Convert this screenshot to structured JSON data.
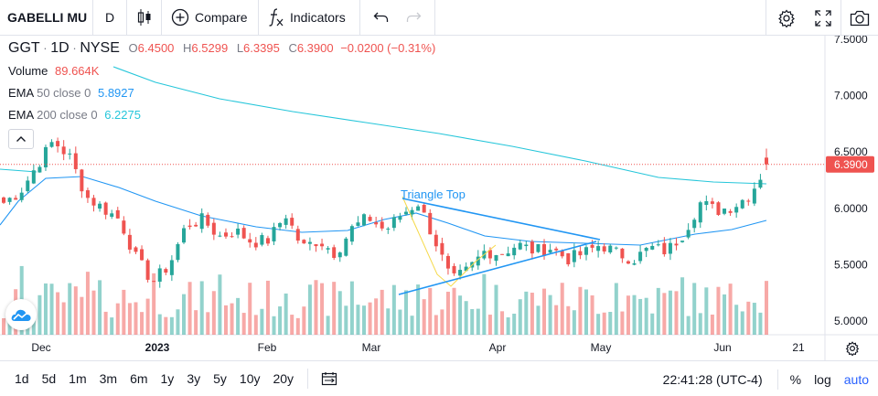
{
  "toolbar": {
    "symbol": "GABELLI MU",
    "interval": "D",
    "compare_label": "Compare",
    "indicators_label": "Indicators",
    "icons": [
      "candles-icon",
      "plus-circle-icon",
      "fx-icon",
      "undo-icon",
      "redo-icon",
      "settings-icon",
      "fullscreen-icon",
      "camera-icon"
    ]
  },
  "legend": {
    "ticker": "GGT",
    "interval": "1D",
    "exchange": "NYSE",
    "open_label": "O",
    "open": "6.4500",
    "high_label": "H",
    "high": "6.5299",
    "low_label": "L",
    "low": "6.3395",
    "close_label": "C",
    "close": "6.3900",
    "change": "−0.0200 (−0.31%)",
    "volume_label": "Volume",
    "volume": "89.664K",
    "ema50_label": "EMA",
    "ema50_params": "50 close 0",
    "ema50_value": "5.8927",
    "ema200_label": "EMA",
    "ema200_params": "200 close 0",
    "ema200_value": "6.2275"
  },
  "colors": {
    "up": "#26a69a",
    "down": "#ef5350",
    "ema50": "#2196f3",
    "ema200": "#26c6da",
    "pattern": "#2196f3"
  },
  "pattern_label": "Triangle Top",
  "current_price_label": "6.3900",
  "time_axis": [
    "Dec",
    "2023",
    "Feb",
    "Mar",
    "Apr",
    "May",
    "Jun",
    "21"
  ],
  "price_axis": [
    "7.5000",
    "7.0000",
    "6.5000",
    "6.0000",
    "5.5000",
    "5.0000"
  ],
  "bottombar": {
    "ranges": [
      "1d",
      "5d",
      "1m",
      "3m",
      "6m",
      "1y",
      "3y",
      "5y",
      "10y",
      "20y"
    ],
    "time": "22:41:28 (UTC-4)",
    "percent_label": "%",
    "log_label": "log",
    "auto_label": "auto"
  },
  "chart_data": {
    "type": "candlestick",
    "ylim": [
      4.9,
      7.6
    ],
    "series": [
      {
        "name": "EMA 50 close 0",
        "values": [
          5.9,
          5.89
        ]
      },
      {
        "name": "EMA 200 close 0",
        "values": [
          7.3,
          6.23
        ]
      }
    ],
    "close_path": [
      6.05,
      6.15,
      6.38,
      6.6,
      6.45,
      6.1,
      6.0,
      5.9,
      5.55,
      5.35,
      5.5,
      5.85,
      5.9,
      5.75,
      5.8,
      5.7,
      5.72,
      5.95,
      5.65,
      5.72,
      5.6,
      5.82,
      5.92,
      5.8,
      5.95,
      6.05,
      5.72,
      5.35,
      5.45,
      5.62,
      5.6,
      5.68,
      5.62,
      5.65,
      5.55,
      5.6,
      5.68,
      5.6,
      5.55,
      5.65,
      5.62,
      5.78,
      6.05,
      5.98,
      6.02,
      6.12,
      6.38
    ]
  }
}
